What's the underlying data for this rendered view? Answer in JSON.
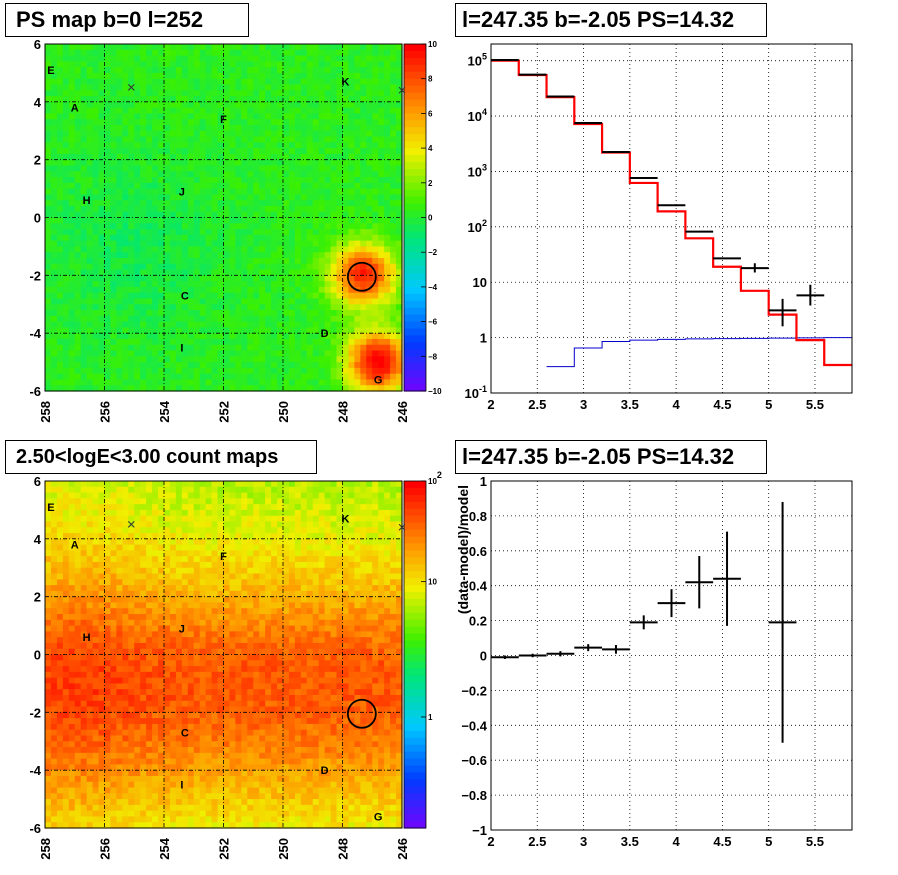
{
  "colors": {
    "map_bg": "#00e060",
    "data_points": "#000000",
    "model_line": "#ff0000",
    "background_line": "#0000cc"
  },
  "panels": {
    "ps_map": {
      "title": "PS map b=0 l=252",
      "x_ticks": [
        "258",
        "256",
        "254",
        "252",
        "250",
        "248",
        "246"
      ],
      "y_ticks": [
        "6",
        "4",
        "2",
        "0",
        "-2",
        "-4",
        "-6"
      ],
      "colorbar_ticks": [
        "10",
        "8",
        "6",
        "4",
        "2",
        "0",
        "−2",
        "−4",
        "−6",
        "−8",
        "−10"
      ],
      "sources": [
        {
          "label": "E",
          "l": 257.8,
          "b": 5.1
        },
        {
          "label": "A",
          "l": 257.0,
          "b": 3.8
        },
        {
          "label": "K",
          "l": 247.9,
          "b": 4.7
        },
        {
          "label": "F",
          "l": 252.0,
          "b": 3.4
        },
        {
          "label": "J",
          "l": 253.4,
          "b": 0.9
        },
        {
          "label": "H",
          "l": 256.6,
          "b": 0.6
        },
        {
          "label": "C",
          "l": 253.3,
          "b": -2.7
        },
        {
          "label": "D",
          "l": 248.6,
          "b": -4.0
        },
        {
          "label": "I",
          "l": 253.4,
          "b": -4.5
        },
        {
          "label": "G",
          "l": 246.8,
          "b": -5.6
        }
      ],
      "crosses": [
        {
          "l": 255.1,
          "b": 4.5
        },
        {
          "l": 246.0,
          "b": 4.4
        }
      ],
      "circle": {
        "l": 247.35,
        "b": -2.05
      }
    },
    "spectrum": {
      "title": "l=247.35 b=-2.05 PS=14.32",
      "x_ticks": [
        "2",
        "2.5",
        "3",
        "3.5",
        "4",
        "4.5",
        "5",
        "5.5"
      ],
      "y_ticks": [
        "10^5",
        "10^4",
        "10^3",
        "10^2",
        "10",
        "1",
        "10^-1"
      ]
    },
    "count_map": {
      "title": "2.50<logE<3.00 count maps",
      "x_ticks": [
        "258",
        "256",
        "254",
        "252",
        "250",
        "248",
        "246"
      ],
      "y_ticks": [
        "6",
        "4",
        "2",
        "0",
        "-2",
        "-4",
        "-6"
      ],
      "colorbar_ticks": [
        "10^2",
        "10",
        "1"
      ]
    },
    "residual": {
      "title": "l=247.35 b=-2.05 PS=14.32",
      "ylabel": "(data-model)/model",
      "x_ticks": [
        "2",
        "2.5",
        "3",
        "3.5",
        "4",
        "4.5",
        "5",
        "5.5"
      ],
      "y_ticks": [
        "1",
        "0.8",
        "0.6",
        "0.4",
        "0.2",
        "0",
        "−0.2",
        "−0.4",
        "−0.6",
        "−0.8",
        "−1"
      ]
    }
  },
  "chart_data": [
    {
      "type": "heatmap",
      "title": "PS map b=0 l=252",
      "xlim": [
        258,
        246
      ],
      "ylim": [
        -6,
        6
      ],
      "zlim": [
        -10,
        10
      ],
      "hotspots": [
        {
          "l": 247.3,
          "b": -2.0,
          "value": 9
        },
        {
          "l": 246.8,
          "b": -5.0,
          "value": 10
        }
      ],
      "background_value": 0.5,
      "grid": true
    },
    {
      "type": "line",
      "title": "l=247.35 b=-2.05 PS=14.32",
      "xlim": [
        2,
        5.9
      ],
      "ylim": [
        0.1,
        200000
      ],
      "log_y": true,
      "series": [
        {
          "bins": [
            [
              2.0,
              2.3,
              100000
            ],
            [
              2.3,
              2.6,
              55000
            ],
            [
              2.6,
              2.9,
              22000
            ],
            [
              2.9,
              3.2,
              7200
            ],
            [
              3.2,
              3.5,
              2200
            ],
            [
              3.5,
              3.8,
              620
            ],
            [
              3.8,
              4.1,
              190
            ],
            [
              4.1,
              4.4,
              62
            ],
            [
              4.4,
              4.7,
              19
            ],
            [
              4.7,
              5.0,
              7
            ],
            [
              5.0,
              5.3,
              2.6
            ],
            [
              5.3,
              5.6,
              0.9
            ],
            [
              5.6,
              5.9,
              0.32
            ]
          ]
        },
        {
          "bins": [
            [
              2.6,
              2.9,
              0.3
            ],
            [
              2.9,
              3.2,
              0.65
            ],
            [
              3.2,
              3.5,
              0.85
            ],
            [
              3.5,
              3.8,
              0.9
            ],
            [
              3.8,
              4.1,
              0.93
            ],
            [
              4.1,
              4.4,
              0.95
            ],
            [
              4.4,
              4.7,
              0.96
            ],
            [
              4.7,
              5.0,
              0.97
            ],
            [
              5.0,
              5.3,
              0.98
            ],
            [
              5.3,
              5.6,
              0.99
            ],
            [
              5.6,
              5.9,
              1.0
            ]
          ]
        },
        {
          "points": [
            [
              2.15,
              103000,
              0.15
            ],
            [
              2.45,
              56000,
              0.15
            ],
            [
              2.75,
              22500,
              0.15
            ],
            [
              3.05,
              7500,
              0.15
            ],
            [
              3.35,
              2250,
              0.15
            ],
            [
              3.65,
              760,
              0.15
            ],
            [
              3.95,
              245,
              0.15
            ],
            [
              4.25,
              82,
              0.15
            ],
            [
              4.55,
              27,
              0.15
            ],
            [
              4.85,
              18,
              0.15
            ],
            [
              5.15,
              3.1,
              0.15
            ],
            [
              5.45,
              5.8,
              0.15
            ]
          ]
        }
      ]
    },
    {
      "type": "heatmap",
      "title": "2.50<logE<3.00 count maps",
      "xlim": [
        258,
        246
      ],
      "ylim": [
        -6,
        6
      ],
      "z_log": true,
      "zlim": [
        0.3,
        100
      ],
      "grid": true
    },
    {
      "type": "scatter",
      "title": "l=247.35 b=-2.05 PS=14.32",
      "ylabel": "(data-model)/model",
      "xlim": [
        2,
        5.9
      ],
      "ylim": [
        -1,
        1
      ],
      "points": [
        {
          "x": 2.15,
          "y": -0.01,
          "xerr": 0.15,
          "yerr": 0.01
        },
        {
          "x": 2.45,
          "y": 0.0,
          "xerr": 0.15,
          "yerr": 0.01
        },
        {
          "x": 2.75,
          "y": 0.01,
          "xerr": 0.15,
          "yerr": 0.015
        },
        {
          "x": 3.05,
          "y": 0.045,
          "xerr": 0.15,
          "yerr": 0.02
        },
        {
          "x": 3.35,
          "y": 0.035,
          "xerr": 0.15,
          "yerr": 0.025
        },
        {
          "x": 3.65,
          "y": 0.19,
          "xerr": 0.15,
          "yerr": 0.04
        },
        {
          "x": 3.95,
          "y": 0.3,
          "xerr": 0.15,
          "yerr": 0.08
        },
        {
          "x": 4.25,
          "y": 0.42,
          "xerr": 0.15,
          "yerr": 0.15
        },
        {
          "x": 4.55,
          "y": 0.44,
          "xerr": 0.15,
          "yerr": 0.27
        },
        {
          "x": 5.15,
          "y": 0.19,
          "xerr": 0.15,
          "yerr": 0.69
        }
      ],
      "grid": true
    }
  ]
}
